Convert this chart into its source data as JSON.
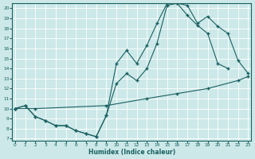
{
  "xlabel": "Humidex (Indice chaleur)",
  "bg_color": "#cce8e8",
  "line_color": "#1a6060",
  "grid_color": "#ffffff",
  "xlim": [
    -0.3,
    23.3
  ],
  "ylim": [
    6.8,
    20.5
  ],
  "xticks": [
    0,
    1,
    2,
    3,
    4,
    5,
    6,
    7,
    8,
    9,
    10,
    11,
    12,
    13,
    14,
    15,
    16,
    17,
    18,
    19,
    20,
    21,
    22,
    23
  ],
  "yticks": [
    7,
    8,
    9,
    10,
    11,
    12,
    13,
    14,
    15,
    16,
    17,
    18,
    19,
    20
  ],
  "line1_x": [
    0,
    1,
    2,
    3,
    4,
    5,
    6,
    7,
    8,
    9,
    10,
    11,
    12,
    13,
    14,
    15,
    16,
    17,
    18,
    19,
    20,
    21
  ],
  "line1_y": [
    10.0,
    10.3,
    9.2,
    8.8,
    8.3,
    8.3,
    7.8,
    7.5,
    7.2,
    9.3,
    12.5,
    13.5,
    12.8,
    14.0,
    16.5,
    20.3,
    20.5,
    19.3,
    18.3,
    17.5,
    14.5,
    14.0
  ],
  "line2_x": [
    0,
    1,
    2,
    3,
    4,
    5,
    6,
    7,
    8,
    9,
    10,
    11,
    12,
    13,
    14,
    15,
    16,
    17,
    18,
    19,
    20,
    21,
    22,
    23
  ],
  "line2_y": [
    10.0,
    10.3,
    9.2,
    8.8,
    8.3,
    8.3,
    7.8,
    7.5,
    7.2,
    9.3,
    14.5,
    15.8,
    14.5,
    16.3,
    18.5,
    20.5,
    20.5,
    20.3,
    18.5,
    19.2,
    18.2,
    17.5,
    14.8,
    13.5
  ],
  "line3_x": [
    0,
    2,
    9,
    13,
    16,
    19,
    22,
    23
  ],
  "line3_y": [
    10.0,
    10.0,
    10.3,
    11.0,
    11.5,
    12.0,
    12.8,
    13.2
  ]
}
